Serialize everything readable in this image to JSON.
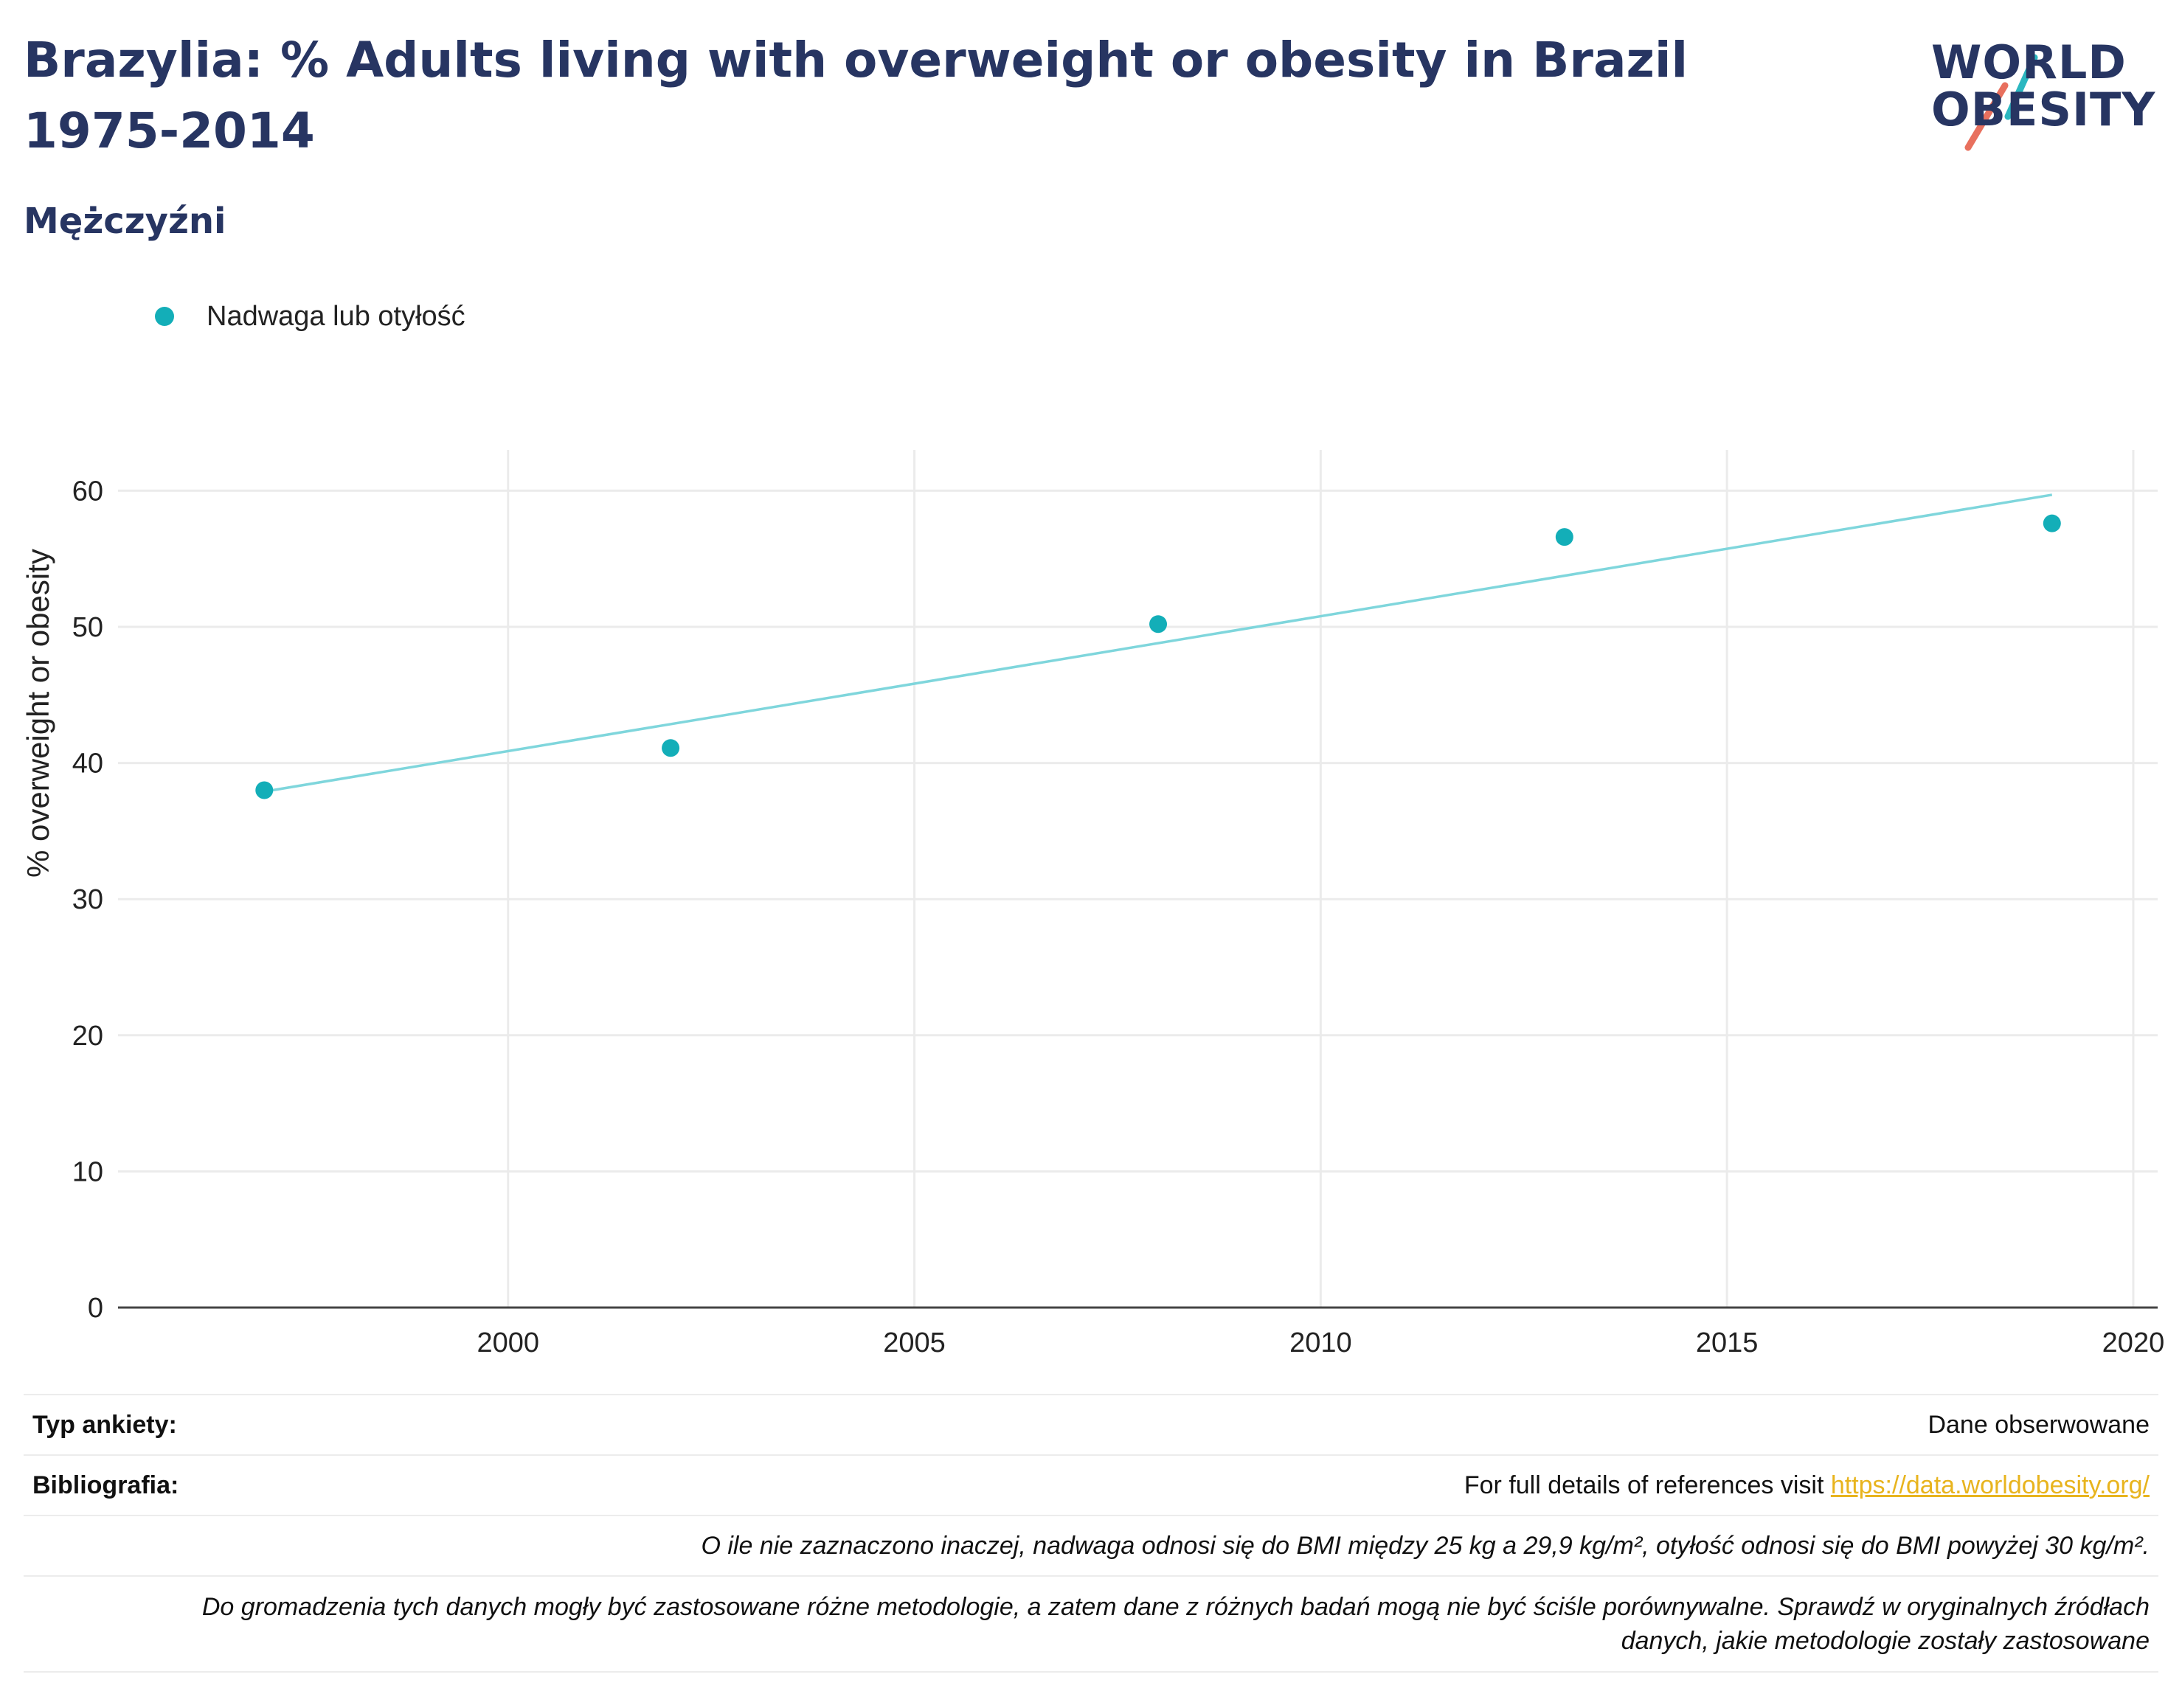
{
  "title": "Brazylia: % Adults living with overweight or obesity in Brazil 1975-2014",
  "subtitle": "Mężczyźni",
  "logo": {
    "line1": "WORLD",
    "line2": "OBESITY",
    "accent_teal": "#2bb7c0",
    "accent_red": "#e8705e"
  },
  "colors": {
    "title": "#273562",
    "series": "#13aeb8",
    "trend": "#7fd6dc",
    "grid": "#ebebeb",
    "link": "#e8b41e"
  },
  "legend": [
    {
      "label": "Nadwaga lub otyłość",
      "color": "#13aeb8"
    }
  ],
  "chart_data": {
    "type": "scatter",
    "ylabel": "% overweight or obesity",
    "xlabel": "",
    "xlim": [
      1995.2,
      2020.3
    ],
    "ylim": [
      0,
      63
    ],
    "x_ticks": [
      2000,
      2005,
      2010,
      2015,
      2020
    ],
    "y_ticks": [
      0,
      10,
      20,
      30,
      40,
      50,
      60
    ],
    "grid": true,
    "legend_position": "top-left",
    "series": [
      {
        "name": "Nadwaga lub otyłość",
        "x": [
          1997,
          2002,
          2008,
          2013,
          2019
        ],
        "y": [
          38.0,
          41.1,
          50.2,
          56.6,
          57.6
        ]
      }
    ],
    "trendline": {
      "x": [
        1997,
        2019
      ],
      "y": [
        37.9,
        59.7
      ]
    }
  },
  "info": {
    "survey_label": "Typ ankiety:",
    "survey_value": "Dane obserwowane",
    "bib_label": "Bibliografia:",
    "bib_text": "For full details of references visit ",
    "bib_link": "https://data.worldobesity.org/",
    "note1": "O ile nie zaznaczono inaczej, nadwaga odnosi się do BMI między 25 kg a 29,9 kg/m², otyłość odnosi się do BMI powyżej 30 kg/m².",
    "note2a": "Do gromadzenia tych danych mogły być zastosowane różne metodologie, a zatem dane z różnych badań mogą nie być ściśle porównywalne. Sprawdź w oryginalnych źródłach",
    "note2b": "danych, jakie metodologie zostały zastosowane"
  }
}
